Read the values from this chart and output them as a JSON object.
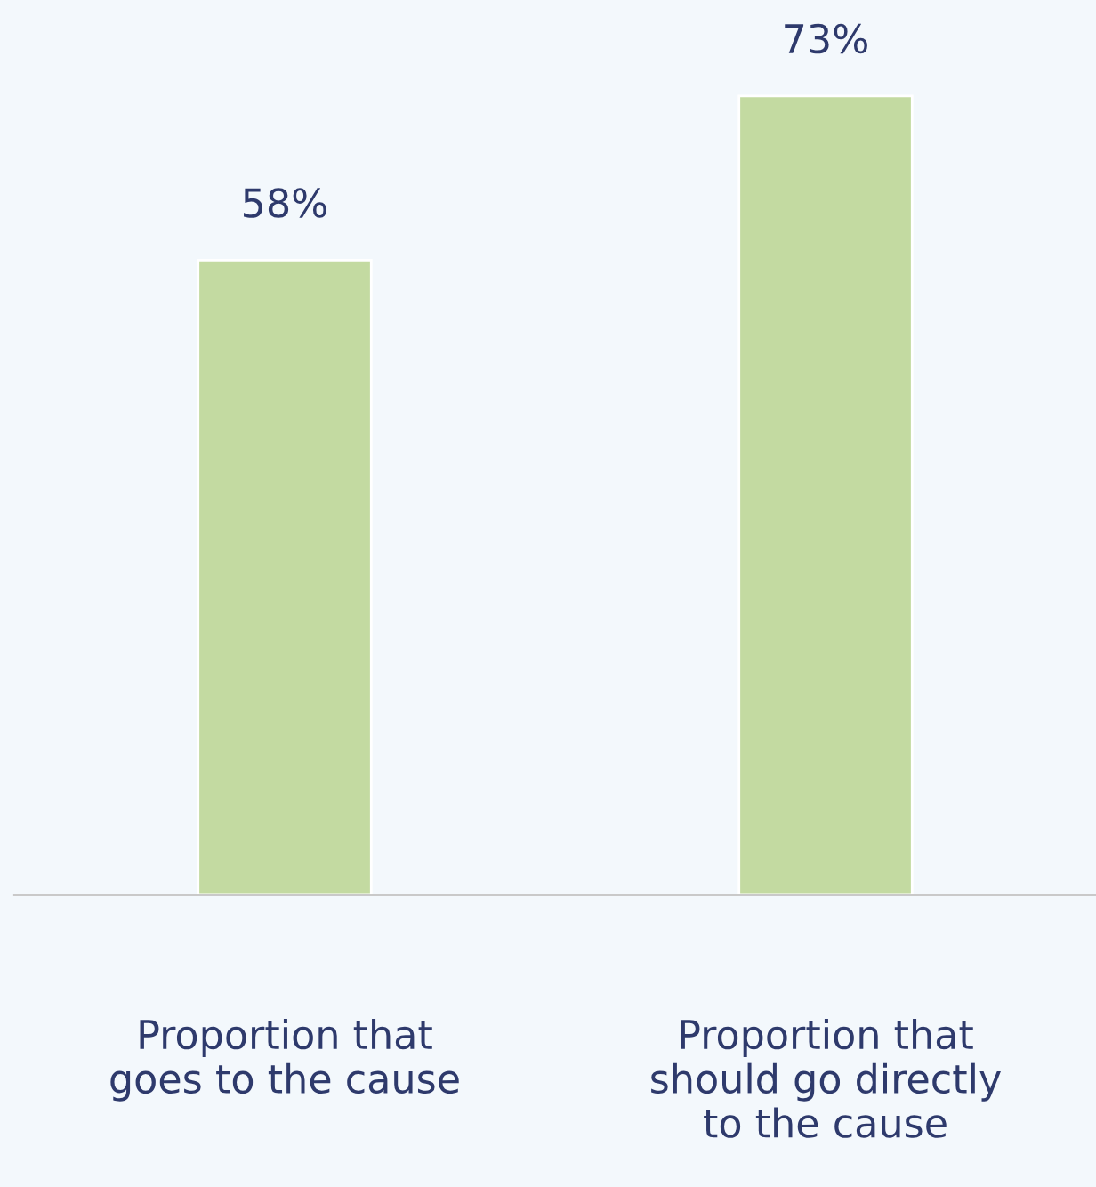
{
  "chart_data": {
    "type": "bar",
    "categories": [
      "Proportion that\ngoes to the cause",
      "Proportion that\nshould go directly\nto the cause"
    ],
    "values": [
      58,
      73
    ],
    "value_labels": [
      "58%",
      "73%"
    ],
    "color": "#c3daa1",
    "grid": false,
    "legend": false
  }
}
